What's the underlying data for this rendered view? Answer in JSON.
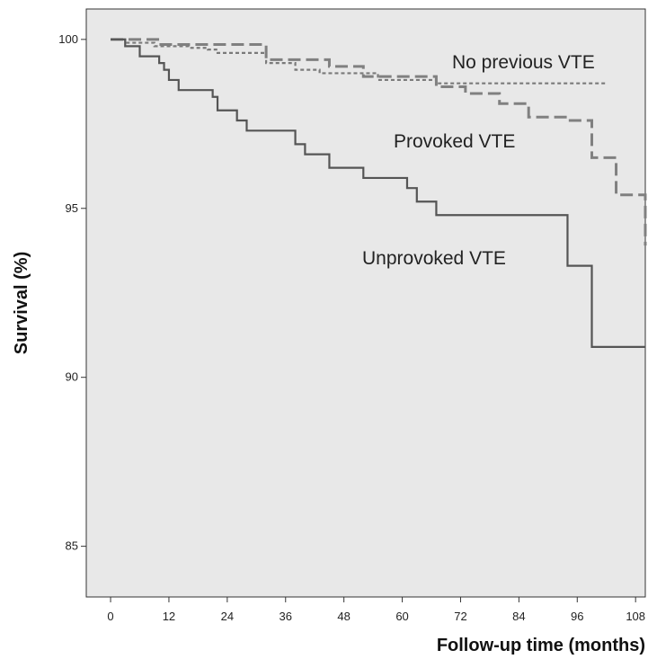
{
  "chart_data": {
    "type": "line",
    "step": true,
    "xlabel": "Follow-up time (months)",
    "ylabel": "Survival (%)",
    "xlim": [
      -5,
      110
    ],
    "ylim": [
      83.5,
      100.9
    ],
    "xticks": [
      0,
      12,
      24,
      36,
      48,
      60,
      72,
      84,
      96,
      108
    ],
    "yticks": [
      85,
      90,
      95,
      100
    ],
    "grid": false,
    "background_color": "#e8e8e8",
    "series": [
      {
        "name": "No previous VTE",
        "style": "dotted",
        "color": "#7a7a7a",
        "x": [
          0,
          3,
          9,
          16,
          20,
          22,
          32,
          38,
          43,
          55,
          67,
          102
        ],
        "y": [
          100,
          99.9,
          99.8,
          99.75,
          99.7,
          99.6,
          99.3,
          99.1,
          99.0,
          98.8,
          98.7,
          98.7
        ]
      },
      {
        "name": "Provoked VTE",
        "style": "dashed",
        "color": "#808080",
        "x": [
          0,
          10,
          32,
          45,
          52,
          67,
          73,
          80,
          86,
          94,
          99,
          104,
          110
        ],
        "y": [
          100,
          99.85,
          99.4,
          99.2,
          98.9,
          98.6,
          98.4,
          98.1,
          97.7,
          97.6,
          96.5,
          95.4,
          93.9
        ]
      },
      {
        "name": "Unprovoked VTE",
        "style": "solid",
        "color": "#555555",
        "x": [
          0,
          3,
          6,
          10,
          11,
          12,
          14,
          21,
          22,
          26,
          28,
          38,
          40,
          45,
          52,
          61,
          63,
          67,
          89,
          94,
          99,
          110
        ],
        "y": [
          100,
          99.8,
          99.5,
          99.3,
          99.1,
          98.8,
          98.5,
          98.3,
          97.9,
          97.6,
          97.3,
          96.9,
          96.6,
          96.2,
          95.9,
          95.6,
          95.2,
          94.8,
          94.8,
          93.3,
          90.9,
          90.9
        ]
      }
    ]
  }
}
